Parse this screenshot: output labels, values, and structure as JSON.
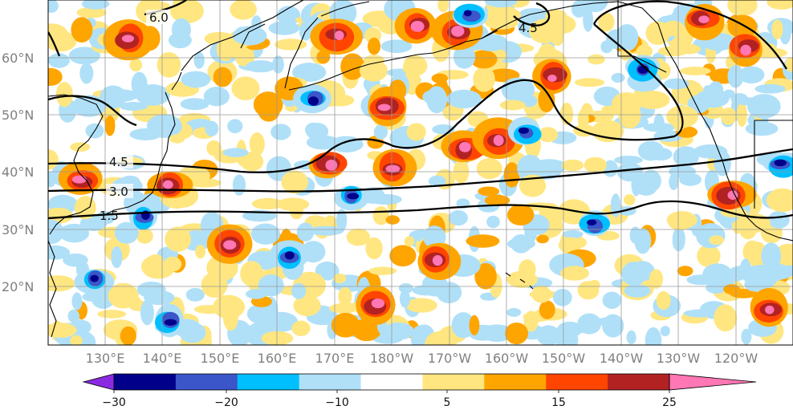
{
  "map": {
    "lat_labels": [
      "60°N",
      "50°N",
      "40°N",
      "30°N",
      "20°N"
    ],
    "lon_labels": [
      "130°E",
      "140°E",
      "150°E",
      "160°E",
      "170°E",
      "180°W",
      "170°W",
      "160°W",
      "150°W",
      "140°W",
      "130°W",
      "120°W"
    ],
    "contour_labels": [
      "6.0",
      "4.5",
      "4.5",
      "3.0",
      "1.5"
    ]
  },
  "colorbar": {
    "colors": [
      "#8a2be2",
      "#00008b",
      "#3a56c8",
      "#00bfff",
      "#b0e0f8",
      "#ffffff",
      "#ffe680",
      "#ffa500",
      "#ff4500",
      "#b22222",
      "#ff77b4"
    ],
    "tick_labels": [
      "−30",
      "−20",
      "−10",
      "5",
      "15",
      "25"
    ]
  }
}
